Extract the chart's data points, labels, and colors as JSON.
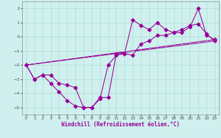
{
  "xlabel": "Windchill (Refroidissement éolien,°C)",
  "background_color": "#cff0ee",
  "grid_color": "#aaddcc",
  "line_color": "#990099",
  "xlim": [
    -0.5,
    23.5
  ],
  "ylim": [
    -5.5,
    2.5
  ],
  "xticks": [
    0,
    1,
    2,
    3,
    4,
    5,
    6,
    7,
    8,
    9,
    10,
    11,
    12,
    13,
    14,
    15,
    16,
    17,
    18,
    19,
    20,
    21,
    22,
    23
  ],
  "yticks": [
    -5,
    -4,
    -3,
    -2,
    -1,
    0,
    1,
    2
  ],
  "series1_x": [
    0,
    1,
    2,
    3,
    4,
    5,
    6,
    7,
    8,
    9,
    10,
    11,
    12,
    13,
    14,
    15,
    16,
    17,
    18,
    19,
    20,
    21,
    22,
    23
  ],
  "series1_y": [
    -2.0,
    -3.0,
    -2.7,
    -3.3,
    -3.9,
    -4.5,
    -4.9,
    -5.0,
    -5.0,
    -4.4,
    -2.0,
    -1.3,
    -1.2,
    1.2,
    0.8,
    0.5,
    1.0,
    0.5,
    0.3,
    0.3,
    0.7,
    2.0,
    0.1,
    -0.2
  ],
  "series2_x": [
    0,
    1,
    2,
    3,
    4,
    5,
    6,
    7,
    8,
    9,
    10,
    11,
    12,
    13,
    14,
    15,
    16,
    17,
    18,
    19,
    20,
    21,
    22,
    23
  ],
  "series2_y": [
    -2.0,
    -3.0,
    -2.7,
    -2.7,
    -3.3,
    -3.4,
    -3.6,
    -5.0,
    -5.0,
    -4.3,
    -4.3,
    -1.2,
    -1.2,
    -1.3,
    -0.5,
    -0.3,
    0.1,
    0.1,
    0.3,
    0.5,
    0.8,
    0.9,
    0.2,
    -0.3
  ],
  "trend1_x": [
    0,
    23
  ],
  "trend1_y": [
    -2.0,
    -0.2
  ],
  "trend2_x": [
    0,
    23
  ],
  "trend2_y": [
    -2.0,
    -0.3
  ],
  "marker_size": 2.5,
  "line_width": 0.8,
  "tick_fontsize": 4.5,
  "xlabel_fontsize": 5.5
}
